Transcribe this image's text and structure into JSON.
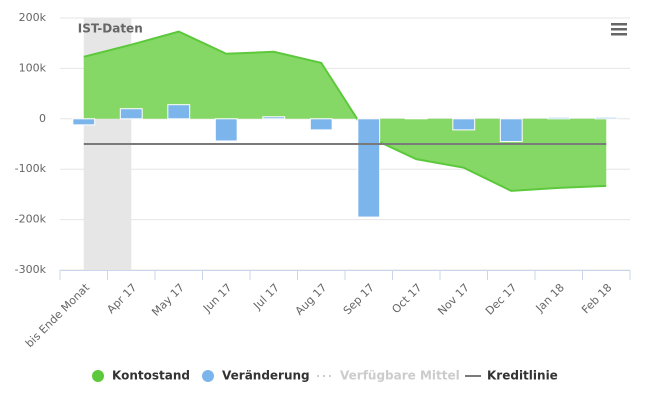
{
  "chart_data": {
    "type": "combo",
    "categories": [
      "bis Ende Monat",
      "Apr 17",
      "May 17",
      "Jun 17",
      "Jul 17",
      "Aug 17",
      "Sep 17",
      "Oct 17",
      "Nov 17",
      "Dec 17",
      "Jan 18",
      "Feb 18"
    ],
    "series": [
      {
        "name": "Kontostand",
        "type": "area",
        "color": "#5cc83b",
        "fill": "#86d866",
        "values": [
          123000,
          147000,
          173000,
          129000,
          133000,
          111000,
          -36000,
          -80000,
          -97000,
          -143000,
          -137000,
          -133000
        ]
      },
      {
        "name": "Veränderung",
        "type": "column",
        "color": "#7cb5ec",
        "values": [
          -12000,
          20000,
          28000,
          -44000,
          4000,
          -22000,
          -195000,
          2000,
          -22000,
          -45000,
          3000,
          3000
        ]
      },
      {
        "name": "Verfügbare Mittel",
        "type": "line",
        "color": "#ccc",
        "visible": false,
        "dash": true
      },
      {
        "name": "Kreditlinie",
        "type": "line",
        "color": "#7a7a7a",
        "values": [
          -50000,
          -50000,
          -50000,
          -50000,
          -50000,
          -50000,
          -50000,
          -50000,
          -50000,
          -50000,
          -50000,
          -50000
        ]
      }
    ],
    "ylim": [
      -300000,
      200000
    ],
    "yticks": [
      {
        "value": -300000,
        "label": "-300k"
      },
      {
        "value": -200000,
        "label": "-200k"
      },
      {
        "value": -100000,
        "label": "-100k"
      },
      0,
      {
        "value": 100000,
        "label": "100k"
      },
      {
        "value": 200000,
        "label": "200k"
      }
    ],
    "grid": true,
    "plot_band": {
      "label": "IST-Daten",
      "from": 0,
      "to": 1,
      "color": "#e6e6e6"
    },
    "legend": "bottom"
  }
}
